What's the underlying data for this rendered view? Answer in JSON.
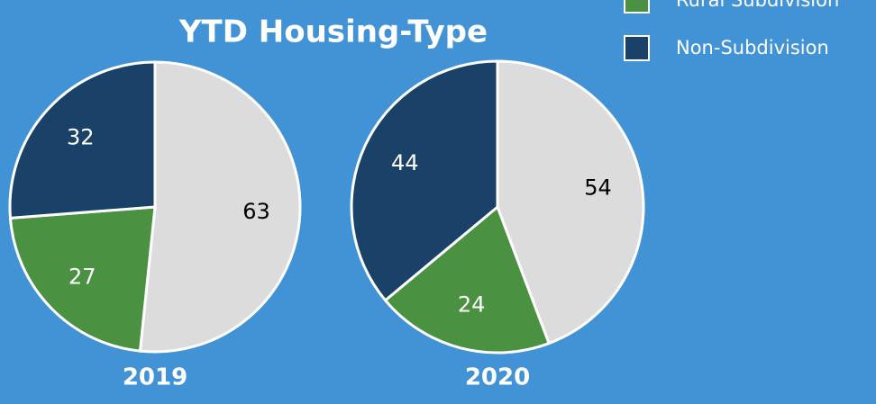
{
  "title": "YTD Housing-Type",
  "chart_data": [
    {
      "type": "pie",
      "title": "2019",
      "categories": [
        null,
        "Rural Subdivision",
        "Non-Subdivision"
      ],
      "values": [
        63,
        27,
        32
      ],
      "colors": [
        "#dcdcdc",
        "#4a9141",
        "#1a4268"
      ]
    },
    {
      "type": "pie",
      "title": "2020",
      "categories": [
        null,
        "Rural Subdivision",
        "Non-Subdivision"
      ],
      "values": [
        54,
        24,
        44
      ],
      "colors": [
        "#dcdcdc",
        "#4a9141",
        "#1a4268"
      ]
    }
  ]
}
